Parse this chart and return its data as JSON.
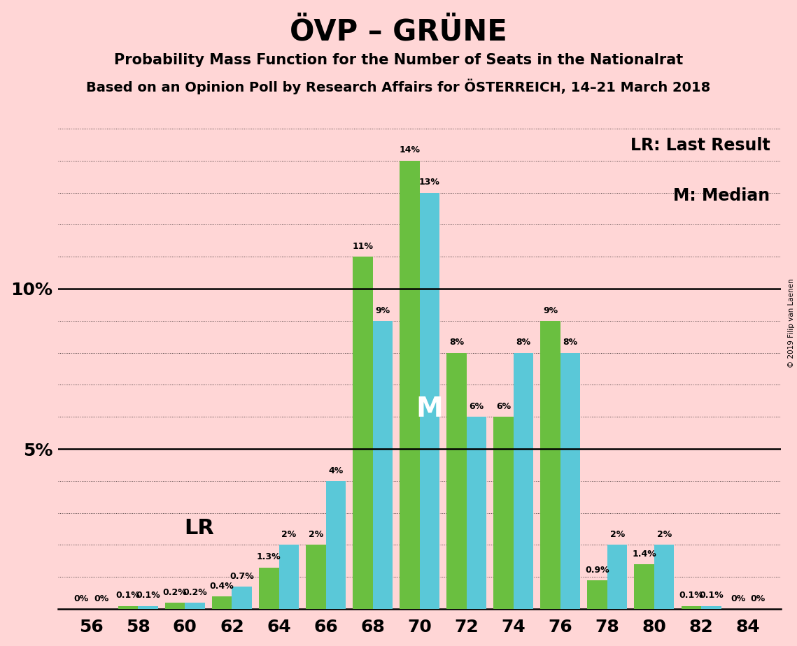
{
  "title": "ÖVP – GRÜNE",
  "subtitle1": "Probability Mass Function for the Number of Seats in the Nationalrat",
  "subtitle2": "Based on an Opinion Poll by Research Affairs for ÖSTERREICH, 14–21 March 2018",
  "copyright": "© 2019 Filip van Laenen",
  "seats": [
    56,
    58,
    60,
    62,
    64,
    66,
    68,
    70,
    72,
    74,
    76,
    78,
    80,
    82,
    84
  ],
  "green_values": [
    0.0,
    0.1,
    0.2,
    0.4,
    1.3,
    2.0,
    11.0,
    14.0,
    8.0,
    6.0,
    9.0,
    0.9,
    1.4,
    0.1,
    0.0
  ],
  "cyan_values": [
    0.0,
    0.1,
    0.2,
    0.7,
    2.0,
    4.0,
    9.0,
    13.0,
    6.0,
    8.0,
    8.0,
    2.0,
    2.0,
    0.1,
    0.0
  ],
  "green_color": "#6abf40",
  "cyan_color": "#5ac8d8",
  "background_color": "#ffd6d6",
  "lr_seat_idx": 3,
  "m_seat_idx": 7,
  "legend_lr": "LR: Last Result",
  "legend_m": "M: Median",
  "ylim_max": 15.5,
  "bar_width": 0.85,
  "title_fontsize": 30,
  "subtitle1_fontsize": 15,
  "subtitle2_fontsize": 14,
  "ytick_fontsize": 18,
  "xtick_fontsize": 18,
  "label_fontsize": 9,
  "legend_fontsize": 17,
  "lr_fontsize": 22,
  "m_fontsize": 28
}
